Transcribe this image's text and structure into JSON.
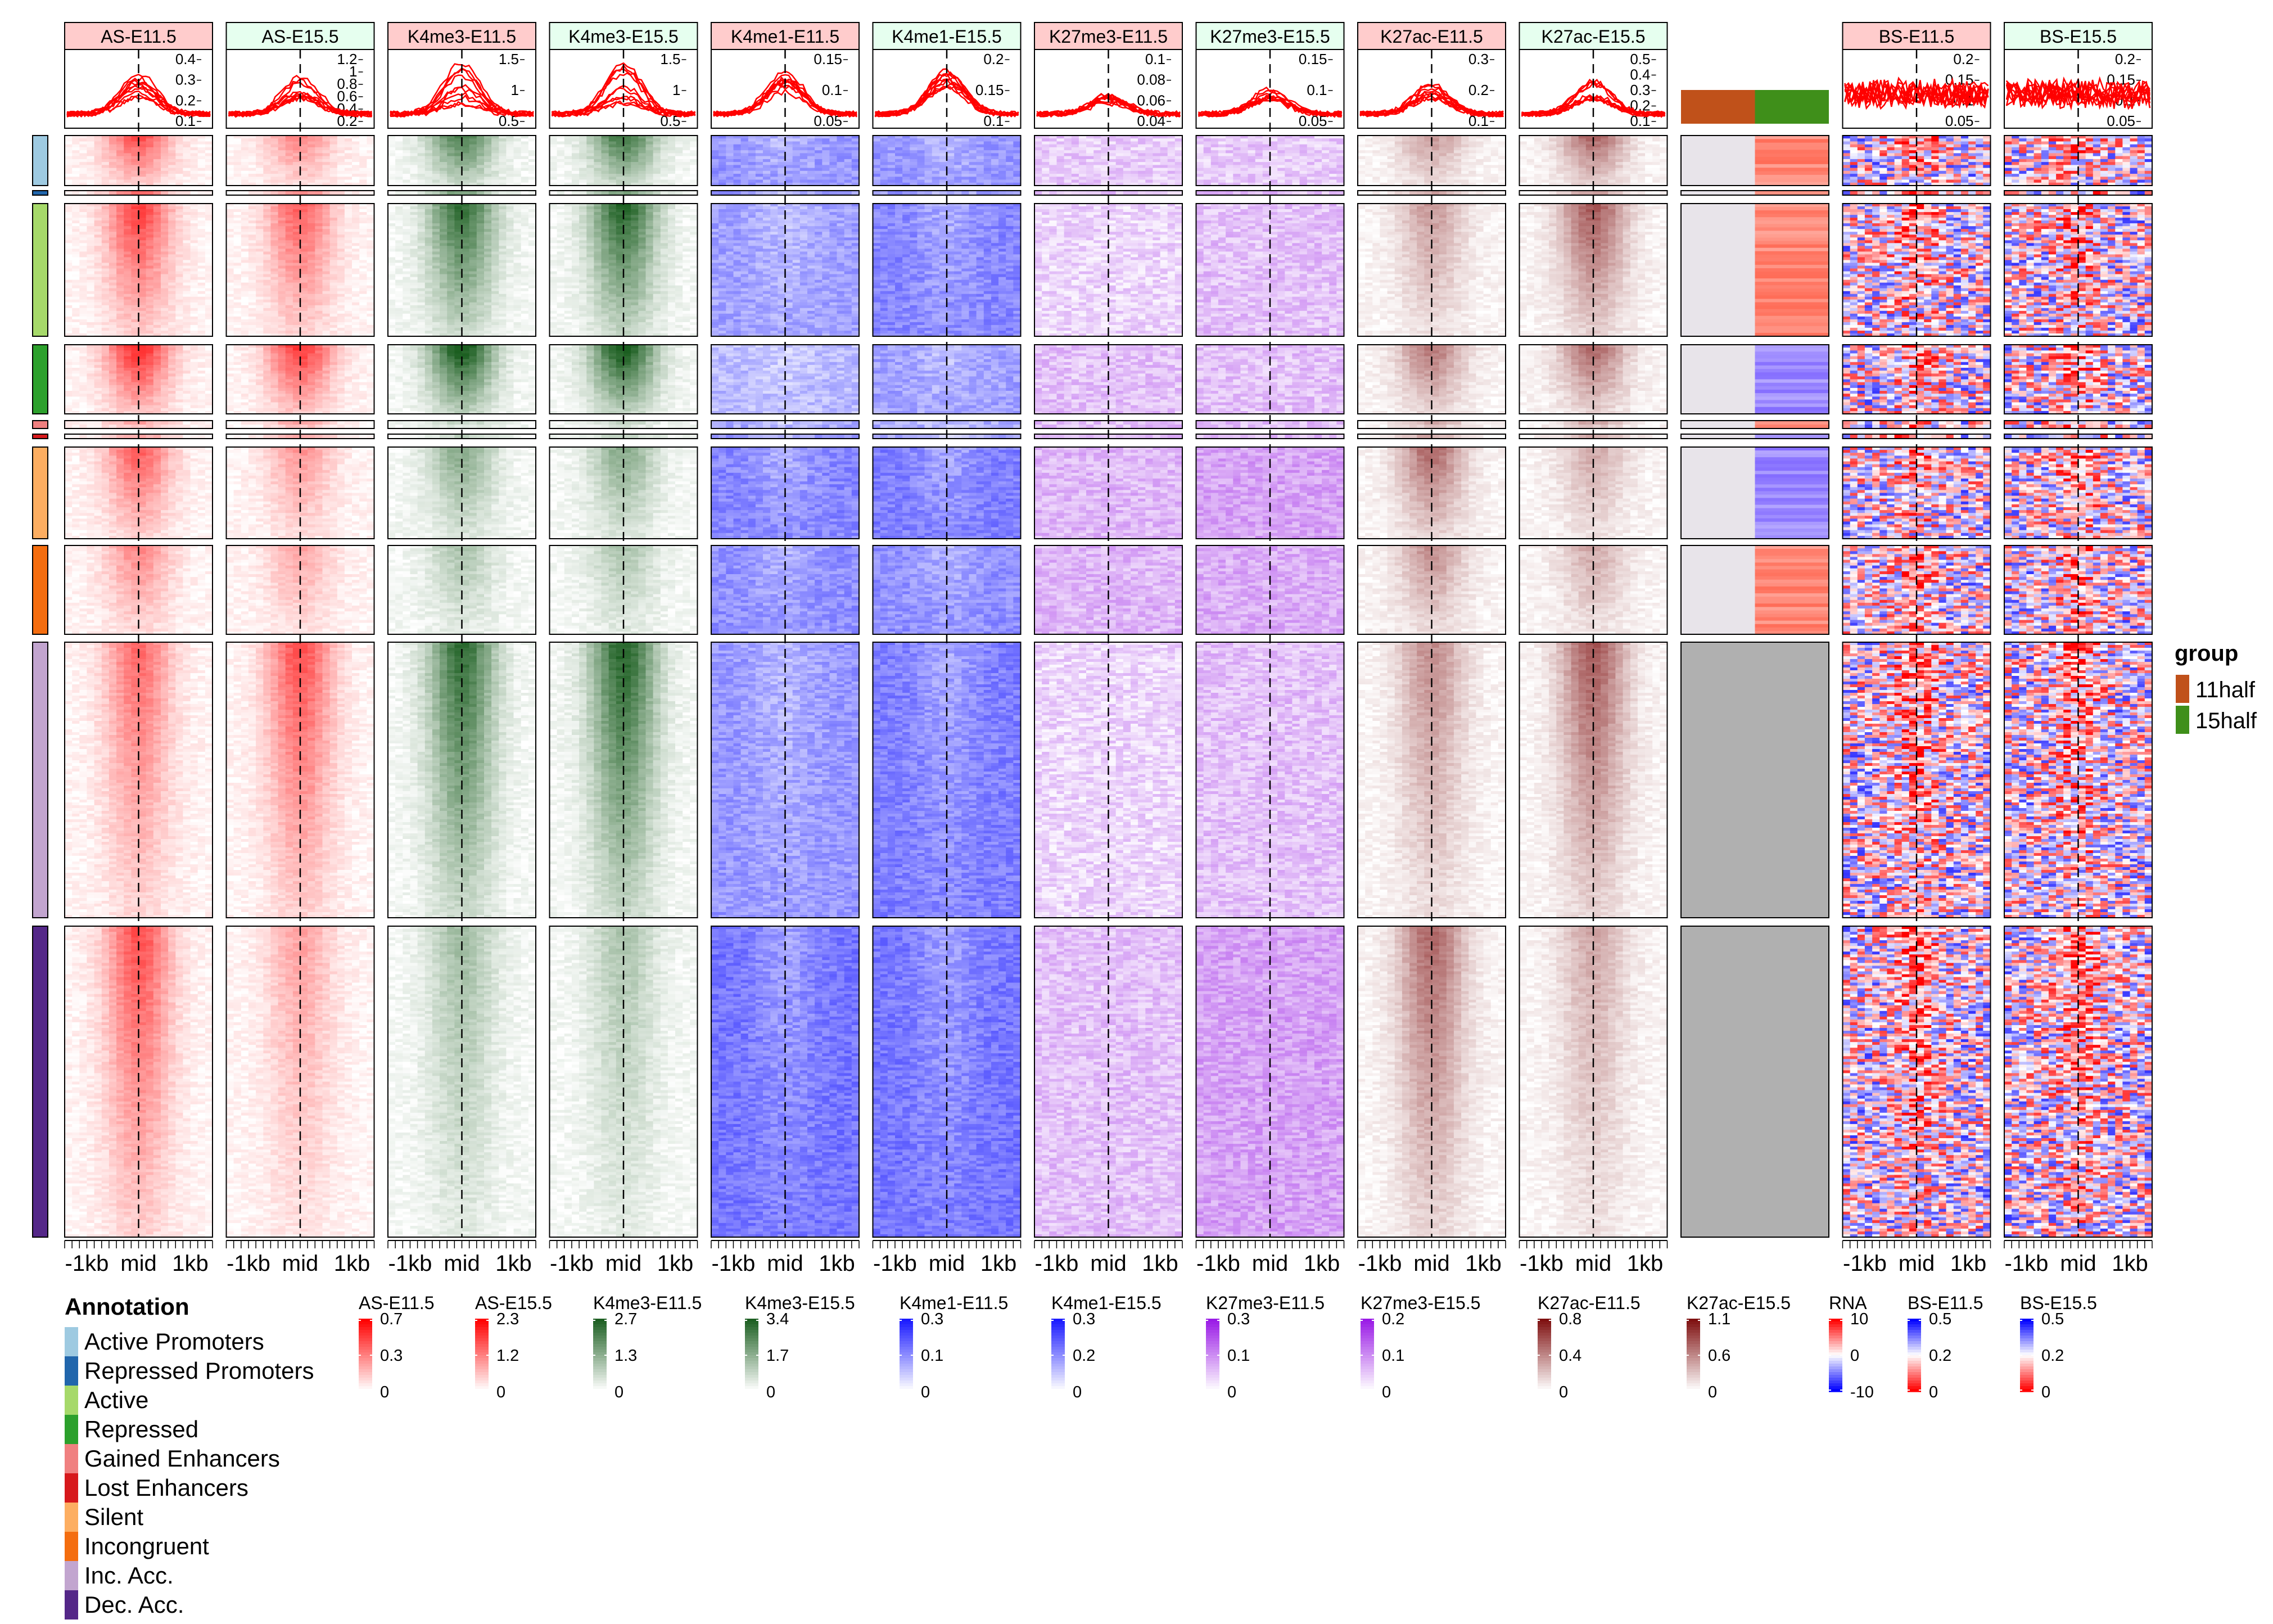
{
  "chart_data": {
    "type": "heatmap",
    "figure": "enriched heatmaps",
    "profile_position": "top",
    "columns": [
      {
        "title": "AS-E11.5",
        "header_color": "#ffcccc",
        "scale": "white-to-red",
        "profile_ticks": [
          "0.4",
          "0.3",
          "0.2",
          "0.1"
        ]
      },
      {
        "title": "AS-E15.5",
        "header_color": "#e6ffef",
        "scale": "white-to-red",
        "profile_ticks": [
          "1.2",
          "1",
          "0.8",
          "0.6",
          "0.4",
          "0.2"
        ]
      },
      {
        "title": "K4me3-E11.5",
        "header_color": "#ffcccc",
        "scale": "white-to-green",
        "profile_ticks": [
          "1.5",
          "1",
          "0.5"
        ]
      },
      {
        "title": "K4me3-E15.5",
        "header_color": "#e6ffef",
        "scale": "white-to-green",
        "profile_ticks": [
          "1.5",
          "1",
          "0.5"
        ]
      },
      {
        "title": "K4me1-E11.5",
        "header_color": "#ffcccc",
        "scale": "white-to-blue",
        "profile_ticks": [
          "0.15",
          "0.1",
          "0.05"
        ]
      },
      {
        "title": "K4me1-E15.5",
        "header_color": "#e6ffef",
        "scale": "white-to-blue",
        "profile_ticks": [
          "0.2",
          "0.15",
          "0.1"
        ]
      },
      {
        "title": "K27me3-E11.5",
        "header_color": "#ffcccc",
        "scale": "white-to-purple",
        "profile_ticks": [
          "0.1",
          "0.08",
          "0.06",
          "0.04"
        ]
      },
      {
        "title": "K27me3-E15.5",
        "header_color": "#e6ffef",
        "scale": "white-to-purple",
        "profile_ticks": [
          "0.15",
          "0.1",
          "0.05"
        ]
      },
      {
        "title": "K27ac-E11.5",
        "header_color": "#ffcccc",
        "scale": "white-to-darkred",
        "profile_ticks": [
          "0.3",
          "0.2",
          "0.1"
        ]
      },
      {
        "title": "K27ac-E15.5",
        "header_color": "#e6ffef",
        "scale": "white-to-darkred",
        "profile_ticks": [
          "0.5",
          "0.4",
          "0.3",
          "0.2",
          "0.1"
        ]
      },
      {
        "title": "",
        "kind": "rna"
      },
      {
        "title": "BS-E11.5",
        "header_color": "#ffcccc",
        "scale": "blue-white-red",
        "profile_ticks": [
          "0.2",
          "0.15",
          "0.1",
          "0.05"
        ]
      },
      {
        "title": "BS-E15.5",
        "header_color": "#e6ffef",
        "scale": "blue-white-red",
        "profile_ticks": [
          "0.2",
          "0.15",
          "0.1",
          "0.05"
        ]
      }
    ],
    "x_axis_ticks": [
      "-1kb",
      "mid",
      "1kb"
    ],
    "row_groups": [
      {
        "name": "Active Promoters",
        "color": "#9ecae1",
        "rna": "up",
        "signal": {
          "AS-E11.5": 0.6,
          "AS-E15.5": 0.4,
          "K4me3-E11.5": 0.7,
          "K4me3-E15.5": 0.75,
          "K4me1-E11.5": 0.6,
          "K4me1-E15.5": 0.6,
          "K27me3-E11.5": 0.25,
          "K27me3-E15.5": 0.25,
          "K27ac-E11.5": 0.35,
          "K27ac-E15.5": 0.55,
          "BS-E11.5": 0.5,
          "BS-E15.5": 0.5
        }
      },
      {
        "name": "Repressed Promoters",
        "color": "#2166ac",
        "rna": "up",
        "signal": {
          "AS-E11.5": 0.5,
          "AS-E15.5": 0.4,
          "K4me3-E11.5": 0.5,
          "K4me3-E15.5": 0.5,
          "K4me1-E11.5": 0.6,
          "K4me1-E15.5": 0.6,
          "K27me3-E11.5": 0.3,
          "K27me3-E15.5": 0.3,
          "K27ac-E11.5": 0.3,
          "K27ac-E15.5": 0.35,
          "BS-E11.5": 0.5,
          "BS-E15.5": 0.5
        }
      },
      {
        "name": "Active",
        "color": "#a6d96a",
        "rna": "up",
        "signal": {
          "AS-E11.5": 0.65,
          "AS-E15.5": 0.55,
          "K4me3-E11.5": 0.8,
          "K4me3-E15.5": 0.85,
          "K4me1-E11.5": 0.55,
          "K4me1-E15.5": 0.7,
          "K27me3-E11.5": 0.2,
          "K27me3-E15.5": 0.3,
          "K27ac-E11.5": 0.35,
          "K27ac-E15.5": 0.6,
          "BS-E11.5": 0.55,
          "BS-E15.5": 0.55
        }
      },
      {
        "name": "Repressed",
        "color": "#2ca02c",
        "rna": "down",
        "signal": {
          "AS-E11.5": 0.75,
          "AS-E15.5": 0.7,
          "K4me3-E11.5": 0.95,
          "K4me3-E15.5": 0.95,
          "K4me1-E11.5": 0.4,
          "K4me1-E15.5": 0.55,
          "K27me3-E11.5": 0.3,
          "K27me3-E15.5": 0.3,
          "K27ac-E11.5": 0.5,
          "K27ac-E15.5": 0.55,
          "BS-E11.5": 0.6,
          "BS-E15.5": 0.6
        }
      },
      {
        "name": "Gained Enhancers",
        "color": "#f08080",
        "rna": "up",
        "signal": {
          "AS-E11.5": 0.3,
          "AS-E15.5": 0.3,
          "K4me3-E11.5": 0.2,
          "K4me3-E15.5": 0.2,
          "K4me1-E11.5": 0.5,
          "K4me1-E15.5": 0.5,
          "K27me3-E11.5": 0.3,
          "K27me3-E15.5": 0.3,
          "K27ac-E11.5": 0.3,
          "K27ac-E15.5": 0.3,
          "BS-E11.5": 0.5,
          "BS-E15.5": 0.5
        }
      },
      {
        "name": "Lost Enhancers",
        "color": "#d7191c",
        "rna": "down",
        "signal": {
          "AS-E11.5": 0.3,
          "AS-E15.5": 0.3,
          "K4me3-E11.5": 0.2,
          "K4me3-E15.5": 0.2,
          "K4me1-E11.5": 0.6,
          "K4me1-E15.5": 0.5,
          "K27me3-E11.5": 0.3,
          "K27me3-E15.5": 0.3,
          "K27ac-E11.5": 0.3,
          "K27ac-E15.5": 0.3,
          "BS-E11.5": 0.5,
          "BS-E15.5": 0.5
        }
      },
      {
        "name": "Silent",
        "color": "#fdae61",
        "rna": "down",
        "signal": {
          "AS-E11.5": 0.55,
          "AS-E15.5": 0.35,
          "K4me3-E11.5": 0.45,
          "K4me3-E15.5": 0.45,
          "K4me1-E11.5": 0.7,
          "K4me1-E15.5": 0.75,
          "K27me3-E11.5": 0.35,
          "K27me3-E15.5": 0.45,
          "K27ac-E11.5": 0.55,
          "K27ac-E15.5": 0.3,
          "BS-E11.5": 0.55,
          "BS-E15.5": 0.55
        }
      },
      {
        "name": "Incongruent",
        "color": "#f46d0f",
        "rna": "up",
        "signal": {
          "AS-E11.5": 0.4,
          "AS-E15.5": 0.3,
          "K4me3-E11.5": 0.3,
          "K4me3-E15.5": 0.3,
          "K4me1-E11.5": 0.65,
          "K4me1-E15.5": 0.65,
          "K27me3-E11.5": 0.35,
          "K27me3-E15.5": 0.4,
          "K27ac-E11.5": 0.4,
          "K27ac-E15.5": 0.3,
          "BS-E11.5": 0.55,
          "BS-E15.5": 0.55
        }
      },
      {
        "name": "Inc. Acc.",
        "color": "#c2a5cf",
        "rna": "na",
        "signal": {
          "AS-E11.5": 0.5,
          "AS-E15.5": 0.6,
          "K4me3-E11.5": 0.8,
          "K4me3-E15.5": 0.85,
          "K4me1-E11.5": 0.6,
          "K4me1-E15.5": 0.75,
          "K27me3-E11.5": 0.2,
          "K27me3-E15.5": 0.3,
          "K27ac-E11.5": 0.4,
          "K27ac-E15.5": 0.6,
          "BS-E11.5": 0.6,
          "BS-E15.5": 0.6
        }
      },
      {
        "name": "Dec. Acc.",
        "color": "#542788",
        "rna": "na",
        "signal": {
          "AS-E11.5": 0.6,
          "AS-E15.5": 0.3,
          "K4me3-E11.5": 0.35,
          "K4me3-E15.5": 0.3,
          "K4me1-E11.5": 0.8,
          "K4me1-E15.5": 0.8,
          "K27me3-E11.5": 0.3,
          "K27me3-E15.5": 0.45,
          "K27ac-E11.5": 0.55,
          "K27ac-E15.5": 0.3,
          "BS-E11.5": 0.6,
          "BS-E15.5": 0.6
        }
      }
    ],
    "rna_group_bar": [
      {
        "name": "11half",
        "color": "#c0511a"
      },
      {
        "name": "15half",
        "color": "#3f8f1a"
      }
    ],
    "group_legend": {
      "title": "group",
      "items": [
        {
          "label": "11half",
          "color": "#c0511a"
        },
        {
          "label": "15half",
          "color": "#3f8f1a"
        }
      ]
    },
    "annotation_legend_title": "Annotation",
    "color_scales": [
      {
        "title": "AS-E11.5",
        "labels": [
          "0.7",
          "0.3",
          "0"
        ],
        "top": "#ff0000",
        "bottom": "#ffffff"
      },
      {
        "title": "AS-E15.5",
        "labels": [
          "2.3",
          "1.2",
          "0"
        ],
        "top": "#ff0000",
        "bottom": "#ffffff"
      },
      {
        "title": "K4me3-E11.5",
        "labels": [
          "2.7",
          "1.3",
          "0"
        ],
        "top": "#1b5e20",
        "bottom": "#ffffff"
      },
      {
        "title": "K4me3-E15.5",
        "labels": [
          "3.4",
          "1.7",
          "0"
        ],
        "top": "#1b5e20",
        "bottom": "#ffffff"
      },
      {
        "title": "K4me1-E11.5",
        "labels": [
          "0.3",
          "0.1",
          "0"
        ],
        "top": "#1a1aff",
        "bottom": "#ffffff"
      },
      {
        "title": "K4me1-E15.5",
        "labels": [
          "0.3",
          "0.2",
          "0"
        ],
        "top": "#1a1aff",
        "bottom": "#ffffff"
      },
      {
        "title": "K27me3-E11.5",
        "labels": [
          "0.3",
          "0.1",
          "0"
        ],
        "top": "#9a1ae6",
        "bottom": "#ffffff"
      },
      {
        "title": "K27me3-E15.5",
        "labels": [
          "0.2",
          "0.1",
          "0"
        ],
        "top": "#9a1ae6",
        "bottom": "#ffffff"
      },
      {
        "title": "K27ac-E11.5",
        "labels": [
          "0.8",
          "0.4",
          "0"
        ],
        "top": "#7f1010",
        "bottom": "#ffffff"
      },
      {
        "title": "K27ac-E15.5",
        "labels": [
          "1.1",
          "0.6",
          "0"
        ],
        "top": "#7f1010",
        "bottom": "#ffffff"
      },
      {
        "title": "RNA",
        "labels": [
          "10",
          "0",
          "-10"
        ],
        "top": "#ff0000",
        "bottom": "#0000ff",
        "diverging": true
      },
      {
        "title": "BS-E11.5",
        "labels": [
          "0.5",
          "0.2",
          "0"
        ],
        "top": "#0000ff",
        "bottom": "#ff0000",
        "diverging": true
      },
      {
        "title": "BS-E15.5",
        "labels": [
          "0.5",
          "0.2",
          "0"
        ],
        "top": "#0000ff",
        "bottom": "#ff0000",
        "diverging": true
      }
    ],
    "profile_line_color": "#ff0000",
    "na_color": "#b0b0b0"
  }
}
